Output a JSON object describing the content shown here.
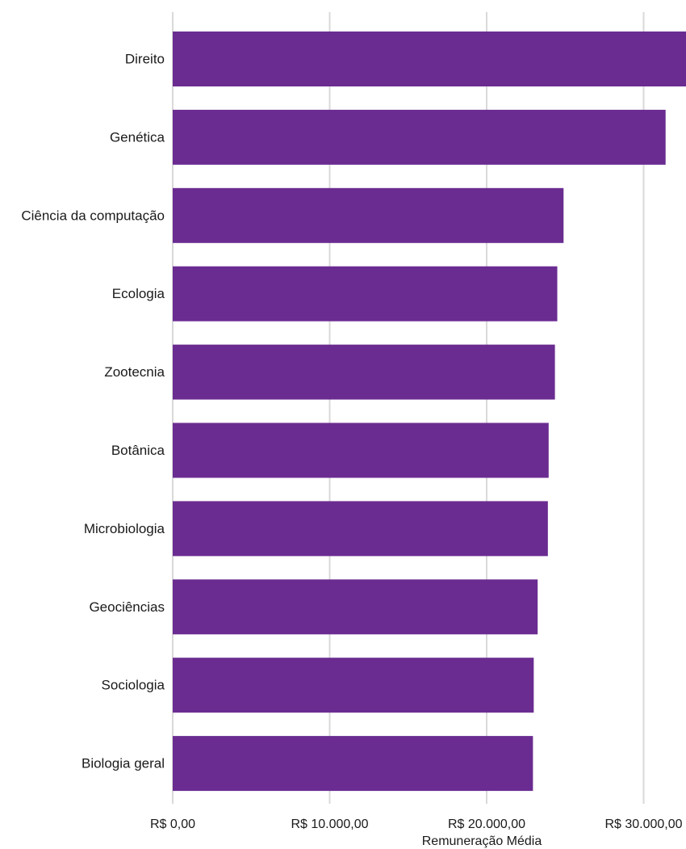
{
  "chart_data": {
    "type": "bar",
    "orientation": "horizontal",
    "categories": [
      "Direito",
      "Genética",
      "Ciência da computação",
      "Ecologia",
      "Zootecnia",
      "Botânica",
      "Microbiologia",
      "Geociências",
      "Sociologia",
      "Biologia geral"
    ],
    "values": [
      32700,
      31400,
      24900,
      24500,
      24350,
      23950,
      23900,
      23250,
      23000,
      22950
    ],
    "title": "",
    "xlabel": "Remuneração Média",
    "ylabel": "",
    "xlim": [
      0,
      32700
    ],
    "xticks": [
      0,
      10000,
      20000,
      30000
    ],
    "xtick_labels": [
      "R$ 0,00",
      "R$ 10.000,00",
      "R$ 20.000,00",
      "R$ 30.000,00"
    ],
    "grid": "vertical",
    "legend": "none",
    "bar_color": "#6a2c91",
    "grid_color": "#d9d9d9"
  }
}
